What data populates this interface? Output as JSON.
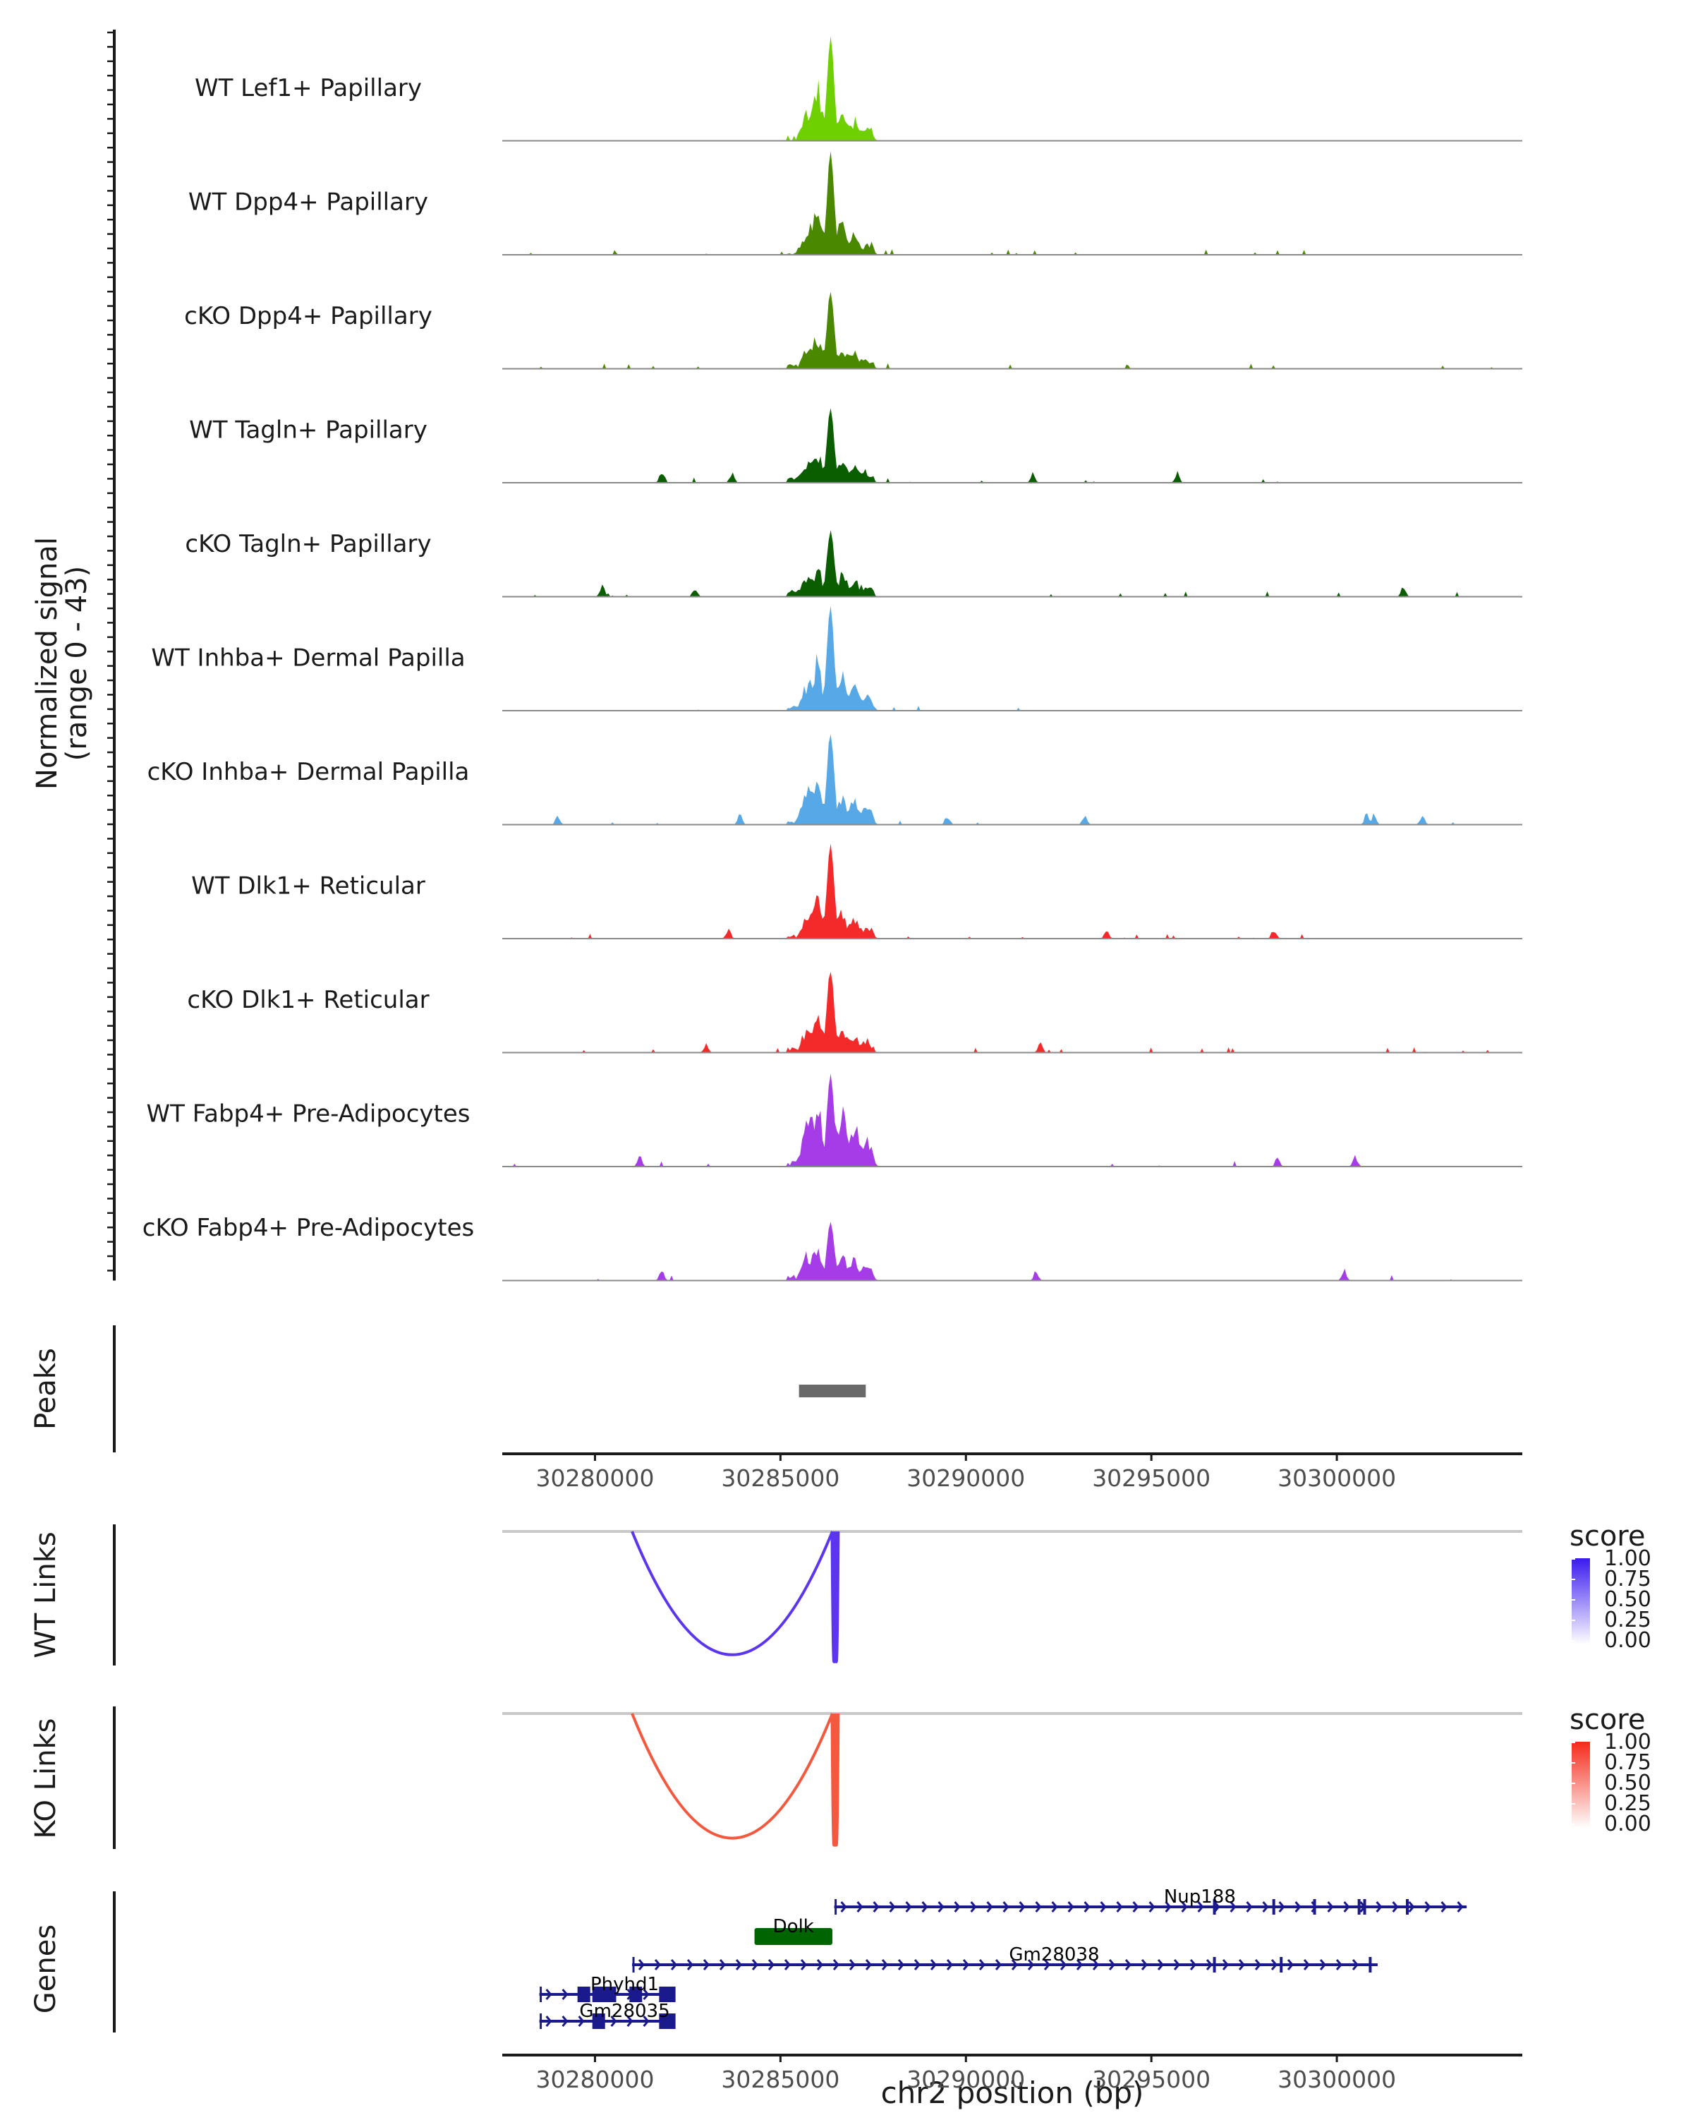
{
  "chart_data": {
    "type": "genome-browser",
    "region": {
      "chrom": "chr2",
      "start": 30277500,
      "end": 30305000
    },
    "coverage": {
      "ylabel": "Normalized signal",
      "yrange_label": "(range 0 - 43)",
      "ylim": [
        0,
        43
      ],
      "peak_center": 30286350,
      "tracks": [
        {
          "name": "WT Lef1+ Papillary",
          "color": "#6ED000",
          "peak_height": 40,
          "noise": 0.0,
          "seed": 3,
          "scatter": [],
          "side": [
            0.25,
            0.55,
            0.3,
            0.2
          ]
        },
        {
          "name": "WT Dpp4+ Papillary",
          "color": "#4A8800",
          "peak_height": 39,
          "noise": 0.35,
          "seed": 7,
          "scatter": [],
          "side": [
            0.25,
            0.5,
            0.35,
            0.2
          ]
        },
        {
          "name": "cKO Dpp4+ Papillary",
          "color": "#4A8800",
          "peak_height": 30,
          "noise": 0.35,
          "seed": 11,
          "scatter": [],
          "side": [
            0.25,
            0.45,
            0.3,
            0.2
          ]
        },
        {
          "name": "WT Tagln+ Papillary",
          "color": "#0A5E00",
          "peak_height": 29,
          "noise": 0.5,
          "seed": 13,
          "scatter": [
            30281800,
            30283700,
            30286900,
            30291800,
            30295700
          ],
          "side": [
            0.25,
            0.4,
            0.3,
            0.2
          ]
        },
        {
          "name": "cKO Tagln+ Papillary",
          "color": "#0A5E00",
          "peak_height": 25,
          "noise": 0.55,
          "seed": 17,
          "scatter": [
            30280200,
            30282700,
            30285300,
            30301800
          ],
          "side": [
            0.3,
            0.45,
            0.35,
            0.25
          ]
        },
        {
          "name": "WT Inhba+ Dermal Papilla",
          "color": "#56A8E6",
          "peak_height": 41,
          "noise": 0.3,
          "seed": 19,
          "scatter": [],
          "side": [
            0.25,
            0.5,
            0.35,
            0.25
          ]
        },
        {
          "name": "cKO Inhba+ Dermal Papilla",
          "color": "#56A8E6",
          "peak_height": 36,
          "noise": 0.3,
          "seed": 23,
          "scatter": [
            30279000,
            30283900,
            30289500,
            30293200,
            30300800,
            30301000,
            30302300
          ],
          "side": [
            0.45,
            0.6,
            0.35,
            0.3
          ]
        },
        {
          "name": "WT Dlk1+ Reticular",
          "color": "#F42A2A",
          "peak_height": 37,
          "noise": 0.5,
          "seed": 29,
          "scatter": [
            30283600,
            30293800,
            30298300
          ],
          "side": [
            0.25,
            0.45,
            0.3,
            0.2
          ]
        },
        {
          "name": "cKO Dlk1+ Reticular",
          "color": "#F42A2A",
          "peak_height": 32,
          "noise": 0.5,
          "seed": 31,
          "scatter": [
            30283000,
            30292000
          ],
          "side": [
            0.25,
            0.45,
            0.3,
            0.2
          ]
        },
        {
          "name": "WT Fabp4+ Pre-Adipocytes",
          "color": "#A63CE8",
          "peak_height": 36,
          "noise": 0.2,
          "seed": 37,
          "scatter": [
            30281200,
            30298400,
            30300500
          ],
          "side": [
            0.55,
            0.8,
            0.7,
            0.45
          ]
        },
        {
          "name": "cKO Fabp4+ Pre-Adipocytes",
          "color": "#A63CE8",
          "peak_height": 22,
          "noise": 0.5,
          "seed": 41,
          "scatter": [
            30281800,
            30291900,
            30300200
          ],
          "side": [
            0.45,
            0.6,
            0.45,
            0.4
          ]
        }
      ]
    },
    "peaks": {
      "label": "Peaks",
      "intervals": [
        [
          30285500,
          30287300
        ]
      ],
      "color": "#696969"
    },
    "x_axis": {
      "ticks": [
        30280000,
        30285000,
        30290000,
        30295000,
        30300000
      ],
      "tick_labels": [
        "30280000",
        "30285000",
        "30290000",
        "30295000",
        "30300000"
      ],
      "title": "chr2 position (bp)"
    },
    "links": [
      {
        "label": "WT Links",
        "color": "#5B35F0",
        "arcs": [
          {
            "start": 30281000,
            "end": 30286400,
            "depth": 0.92
          },
          {
            "start": 30286400,
            "end": 30286500,
            "depth": 0.97
          },
          {
            "start": 30286450,
            "end": 30286550,
            "depth": 0.97
          }
        ]
      },
      {
        "label": "KO Links",
        "color": "#F4583E",
        "arcs": [
          {
            "start": 30281000,
            "end": 30286400,
            "depth": 0.92
          },
          {
            "start": 30286400,
            "end": 30286500,
            "depth": 0.97
          },
          {
            "start": 30286450,
            "end": 30286550,
            "depth": 0.97
          }
        ]
      }
    ],
    "legends": [
      {
        "title": "score",
        "color": "#3A1AF0",
        "labels": [
          "1.00",
          "0.75",
          "0.50",
          "0.25",
          "0.00"
        ]
      },
      {
        "title": "score",
        "color": "#F42A1A",
        "labels": [
          "1.00",
          "0.75",
          "0.50",
          "0.25",
          "0.00"
        ]
      }
    ],
    "genes": {
      "label": "Genes",
      "items": [
        {
          "name": "Nup188",
          "start": 30286450,
          "end": 30303500,
          "row": 0,
          "color": "#1A1A8C",
          "exons": [
            30296700,
            30298300,
            30299400,
            30300600,
            30300750,
            30301900
          ]
        },
        {
          "name": "Dolk",
          "start": 30284300,
          "end": 30286400,
          "row": 1,
          "color": "#006400",
          "exons": []
        },
        {
          "name": "Gm28038",
          "start": 30281000,
          "end": 30301100,
          "row": 2,
          "color": "#1A1A8C",
          "exons": [
            30296700,
            30298500,
            30300900
          ]
        },
        {
          "name": "Phyhd1",
          "start": 30278500,
          "end": 30282100,
          "row": 3,
          "color": "#1A1A8C",
          "exons": [
            30279700,
            30280100,
            30280400,
            30281100,
            30281900,
            30282000
          ]
        },
        {
          "name": "Gm28035",
          "start": 30278500,
          "end": 30282100,
          "row": 4,
          "color": "#1A1A8C",
          "exons": [
            30280100,
            30281900,
            30282000
          ]
        }
      ]
    }
  }
}
